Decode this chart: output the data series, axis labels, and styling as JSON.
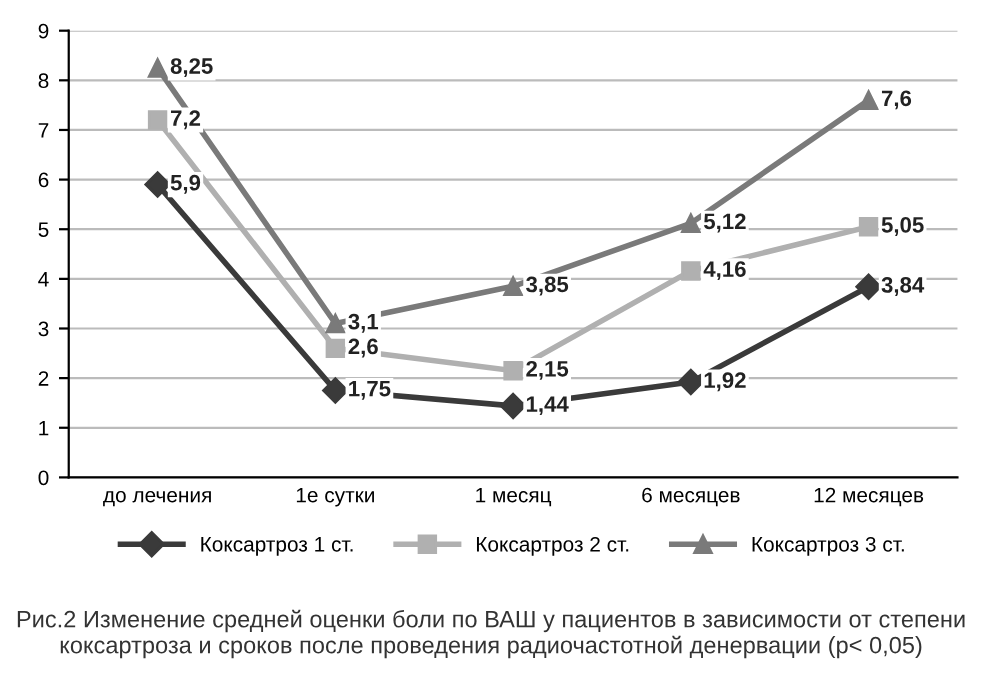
{
  "chart_data": {
    "type": "line",
    "categories": [
      "до лечения",
      "1е сутки",
      "1 месяц",
      "6 месяцев",
      "12 месяцев"
    ],
    "series": [
      {
        "name": "Коксартроз 1 ст.",
        "color": "#3a3a3a",
        "marker": "diamond",
        "values": [
          5.9,
          1.75,
          1.44,
          1.92,
          3.84
        ],
        "value_labels": [
          "5,9",
          "1,75",
          "1,44",
          "1,92",
          "3,84"
        ]
      },
      {
        "name": "Коксартроз 2 ст.",
        "color": "#b0b0b0",
        "marker": "square",
        "values": [
          7.2,
          2.6,
          2.15,
          4.16,
          5.05
        ],
        "value_labels": [
          "7,2",
          "2,6",
          "2,15",
          "4,16",
          "5,05"
        ]
      },
      {
        "name": "Коксартроз 3 ст.",
        "color": "#7a7a7a",
        "marker": "triangle",
        "values": [
          8.25,
          3.1,
          3.85,
          5.12,
          7.6
        ],
        "value_labels": [
          "8,25",
          "3,1",
          "3,85",
          "5,12",
          "7,6"
        ]
      }
    ],
    "ylim": [
      0,
      9
    ],
    "yticks": [
      0,
      1,
      2,
      3,
      4,
      5,
      6,
      7,
      8,
      9
    ],
    "grid": "y",
    "legend": "bottom",
    "line_style": "solid",
    "annotations": [
      "Рис.2 Изменение средней оценки боли по ВАШ у пациентов в зависимости от степени коксартроза и сроков после проведения радиочастотной денервации (р< 0,05)"
    ]
  }
}
